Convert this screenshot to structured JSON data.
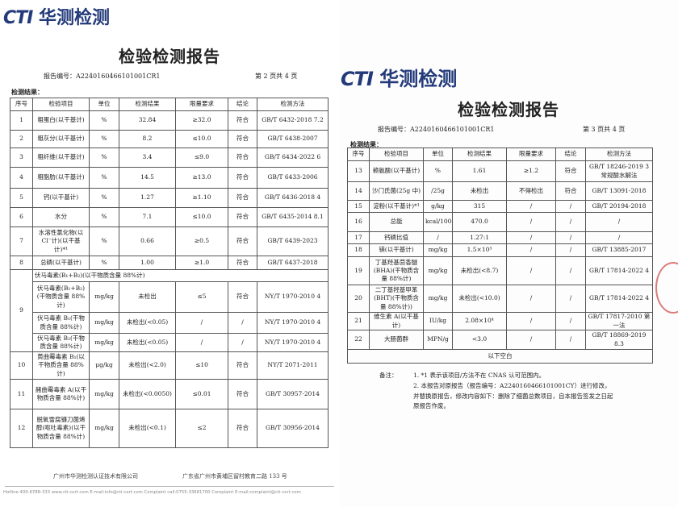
{
  "brand": {
    "logo_latin": "CTI",
    "logo_cn": "华测检测"
  },
  "left_page": {
    "title": "检验检测报告",
    "report_no": "报告编号：A2240160466101001CR1",
    "page_no": "第 2 页共 4 页",
    "section": "检测结果：",
    "headers": [
      "序号",
      "检验项目",
      "单位",
      "检测结果",
      "限量要求",
      "结论",
      "检测方法"
    ],
    "rows": [
      [
        "1",
        "粗蛋白(以干基计)",
        "%",
        "32.84",
        "≥32.0",
        "符合",
        "GB/T 6432-2018 7.2"
      ],
      [
        "2",
        "粗灰分(以干基计)",
        "%",
        "8.2",
        "≤10.0",
        "符合",
        "GB/T 6438-2007"
      ],
      [
        "3",
        "粗纤维(以干基计)",
        "%",
        "3.4",
        "≤9.0",
        "符合",
        "GB/T 6434-2022 6"
      ],
      [
        "4",
        "粗脂肪(以干基计)",
        "%",
        "14.5",
        "≥13.0",
        "符合",
        "GB/T 6433-2006"
      ],
      [
        "5",
        "钙(以干基计)",
        "%",
        "1.27",
        "≥1.10",
        "符合",
        "GB/T 6436-2018 4"
      ],
      [
        "6",
        "水分",
        "%",
        "7.1",
        "≤10.0",
        "符合",
        "GB/T 6435-2014 8.1"
      ],
      [
        "7",
        "水溶性氯化物(以Cl⁻计)(以干基计)*¹",
        "%",
        "0.66",
        "≥0.5",
        "符合",
        "GB/T 6439-2023"
      ],
      [
        "8",
        "总磷(以干基计)",
        "%",
        "1.00",
        "≥1.0",
        "符合",
        "GB/T 6437-2018"
      ]
    ],
    "group9": {
      "no": "9",
      "label": "伏马毒素(B₁+B₂)(以干物质含量 88%计)",
      "rows": [
        [
          "伏马毒素(B₁+B₂)(干物质含量 88%计)",
          "mg/kg",
          "未检出",
          "≤5",
          "符合",
          "NY/T 1970-2010 4"
        ],
        [
          "伏马毒素 B₁(干物质含量 88%计)",
          "mg/kg",
          "未检出(<0.05)",
          "/",
          "/",
          "NY/T 1970-2010 4"
        ],
        [
          "伏马毒素 B₂(干物质含量 88%计)",
          "mg/kg",
          "未检出(<0.05)",
          "/",
          "/",
          "NY/T 1970-2010 4"
        ]
      ]
    },
    "rows_after": [
      [
        "10",
        "黄曲霉毒素 B₁(以干物质含量 88%计)",
        "μg/kg",
        "未检出(<2.0)",
        "≤10",
        "符合",
        "NY/T 2071-2011"
      ],
      [
        "11",
        "赭曲霉毒素 A(以干物质含量 88%计)",
        "mg/kg",
        "未检出(<0.0050)",
        "≤0.01",
        "符合",
        "GB/T 30957-2014"
      ],
      [
        "12",
        "脱氧雪腐镰刀菌烯醇(呕吐毒素)(以干物质含量 88%计)",
        "mg/kg",
        "未检出(<0.1)",
        "≤2",
        "符合",
        "GB/T 30956-2014"
      ]
    ],
    "footer_company": "广州市华测检测认证技术有限公司",
    "footer_address": "广东省广州市黄埔区留村教育二路 133 号",
    "footer_contact": "Hotline 400-6788-333    www.cti-cert.com    E-mail:info@cti-cert.com    Complaint call:0755-33681700    Complaint E-mail:complaint@cti-cert.com"
  },
  "right_page": {
    "title": "检验检测报告",
    "report_no": "报告编号：A2240160466101001CR1",
    "page_no": "第 3 页共 4 页",
    "section": "检测结果：",
    "headers": [
      "序号",
      "检验项目",
      "单位",
      "检测结果",
      "限量要求",
      "结论",
      "检测方法"
    ],
    "rows": [
      [
        "13",
        "赖氨酸(以干基计)",
        "%",
        "1.61",
        "≥1.2",
        "符合",
        "GB/T 18246-2019 3 常规酸水解法"
      ],
      [
        "14",
        "沙门氏菌(25g 中)",
        "/25g",
        "未检出",
        "不得检出",
        "符合",
        "GB/T 13091-2018"
      ],
      [
        "15",
        "淀粉(以干基计)*¹",
        "g/kg",
        "315",
        "/",
        "/",
        "GB/T 20194-2018"
      ],
      [
        "16",
        "总能",
        "kcal/100g",
        "470.0",
        "/",
        "/",
        "/"
      ],
      [
        "17",
        "钙磷比值",
        "/",
        "1.27:1",
        "/",
        "/",
        "/"
      ],
      [
        "18",
        "镁(以干基计)",
        "mg/kg",
        "1.5×10³",
        "/",
        "/",
        "GB/T 13885-2017"
      ],
      [
        "19",
        "丁基羟基茴香醚(BHA)(干物质含量 88%计)",
        "mg/kg",
        "未检出(<8.7)",
        "/",
        "/",
        "GB/T 17814-2022 4"
      ],
      [
        "20",
        "二丁基羟基甲苯(BHT)(干物质含量 88%计))",
        "mg/kg",
        "未检出(<10.0)",
        "/",
        "/",
        "GB/T 17814-2022 4"
      ],
      [
        "21",
        "维生素 A(以干基计)",
        "IU/kg",
        "2.08×10⁴",
        "/",
        "/",
        "GB/T 17817-2010 第一法"
      ],
      [
        "22",
        "大肠菌群",
        "MPN/g",
        "<3.0",
        "/",
        "/",
        "GB/T 18869-2019 8.3"
      ]
    ],
    "blank_row": "以下空白",
    "notes_label": "备注：",
    "notes": [
      "1. *1 表示该项目/方法不在 CNAS 认可范围内。",
      "2. 本报告对原报告（报告编号：A2240160466101001CY）进行修改，并替换原报告，修改内容如下：删除了细菌总数项目，自本报告签发之日起原报告作废。"
    ]
  }
}
